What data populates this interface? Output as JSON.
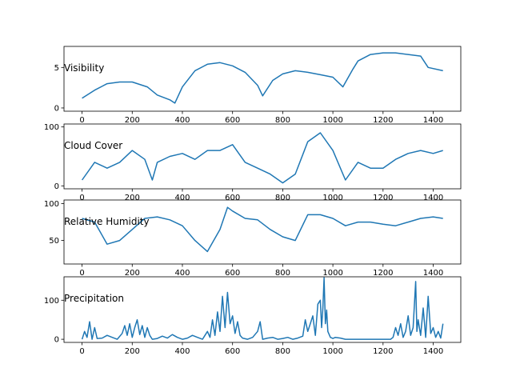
{
  "chart_data": [
    {
      "type": "line",
      "title": "Visibility",
      "xlabel": "",
      "ylabel": "",
      "xlim": [
        -72,
        1510
      ],
      "ylim": [
        -0.4,
        7.6
      ],
      "xticks": [
        0,
        200,
        400,
        600,
        800,
        1000,
        1200,
        1400
      ],
      "yticks": [
        0,
        5
      ],
      "color": "#1f77b4",
      "series": [
        {
          "x": [
            0,
            50,
            100,
            150,
            200,
            260,
            300,
            350,
            370,
            400,
            450,
            500,
            550,
            600,
            650,
            700,
            720,
            760,
            800,
            850,
            900,
            950,
            1000,
            1040,
            1080,
            1100,
            1150,
            1200,
            1250,
            1300,
            1350,
            1380,
            1439
          ],
          "y": [
            1.2,
            2.2,
            3.0,
            3.2,
            3.2,
            2.6,
            1.6,
            1.0,
            0.6,
            2.6,
            4.6,
            5.4,
            5.6,
            5.2,
            4.4,
            2.8,
            1.5,
            3.4,
            4.2,
            4.6,
            4.4,
            4.1,
            3.8,
            2.6,
            4.8,
            5.8,
            6.6,
            6.8,
            6.8,
            6.6,
            6.4,
            5.0,
            4.6
          ]
        }
      ]
    },
    {
      "type": "line",
      "title": "Cloud Cover",
      "xlabel": "",
      "ylabel": "",
      "xlim": [
        -72,
        1510
      ],
      "ylim": [
        -5,
        105
      ],
      "xticks": [
        0,
        200,
        400,
        600,
        800,
        1000,
        1200,
        1400
      ],
      "yticks": [
        0,
        100
      ],
      "color": "#1f77b4",
      "series": [
        {
          "x": [
            0,
            50,
            100,
            150,
            200,
            250,
            280,
            300,
            350,
            400,
            450,
            500,
            550,
            600,
            650,
            700,
            750,
            800,
            850,
            900,
            950,
            1000,
            1050,
            1100,
            1150,
            1200,
            1250,
            1300,
            1350,
            1400,
            1439
          ],
          "y": [
            10,
            40,
            30,
            40,
            60,
            45,
            10,
            40,
            50,
            55,
            45,
            60,
            60,
            70,
            40,
            30,
            20,
            5,
            20,
            75,
            90,
            60,
            10,
            40,
            30,
            30,
            45,
            55,
            60,
            55,
            60
          ]
        }
      ]
    },
    {
      "type": "line",
      "title": "Relative Humidity",
      "xlabel": "",
      "ylabel": "",
      "xlim": [
        -72,
        1510
      ],
      "ylim": [
        18,
        105
      ],
      "xticks": [
        0,
        200,
        400,
        600,
        800,
        1000,
        1200,
        1400
      ],
      "yticks": [
        50,
        100
      ],
      "color": "#1f77b4",
      "series": [
        {
          "x": [
            0,
            50,
            100,
            150,
            200,
            250,
            300,
            350,
            400,
            450,
            500,
            550,
            580,
            600,
            650,
            700,
            750,
            800,
            850,
            900,
            950,
            1000,
            1050,
            1100,
            1150,
            1200,
            1250,
            1300,
            1350,
            1400,
            1439
          ],
          "y": [
            80,
            75,
            45,
            50,
            65,
            80,
            82,
            78,
            70,
            50,
            35,
            65,
            95,
            90,
            80,
            78,
            65,
            55,
            50,
            85,
            85,
            80,
            70,
            75,
            75,
            72,
            70,
            75,
            80,
            82,
            80
          ]
        }
      ]
    },
    {
      "type": "line",
      "title": "Precipitation",
      "xlabel": "",
      "ylabel": "",
      "xlim": [
        -72,
        1510
      ],
      "ylim": [
        -8,
        160
      ],
      "xticks": [
        0,
        200,
        400,
        600,
        800,
        1000,
        1200,
        1400
      ],
      "yticks": [
        0,
        100
      ],
      "color": "#1f77b4",
      "series": [
        {
          "x": [
            0,
            10,
            20,
            30,
            40,
            50,
            60,
            80,
            100,
            120,
            140,
            160,
            170,
            180,
            190,
            200,
            210,
            220,
            230,
            240,
            250,
            260,
            270,
            280,
            300,
            320,
            340,
            360,
            380,
            400,
            420,
            440,
            460,
            480,
            500,
            510,
            520,
            530,
            540,
            550,
            560,
            570,
            580,
            590,
            600,
            610,
            620,
            630,
            640,
            660,
            680,
            700,
            710,
            720,
            740,
            760,
            780,
            800,
            820,
            840,
            860,
            880,
            890,
            900,
            910,
            920,
            930,
            940,
            950,
            955,
            960,
            965,
            970,
            975,
            980,
            990,
            1000,
            1010,
            1030,
            1050,
            1080,
            1110,
            1140,
            1170,
            1200,
            1230,
            1240,
            1250,
            1260,
            1270,
            1280,
            1290,
            1300,
            1310,
            1320,
            1330,
            1335,
            1340,
            1350,
            1360,
            1370,
            1380,
            1390,
            1400,
            1410,
            1420,
            1430,
            1439
          ],
          "y": [
            0,
            20,
            5,
            45,
            0,
            30,
            2,
            3,
            10,
            5,
            0,
            15,
            35,
            10,
            40,
            5,
            30,
            50,
            12,
            35,
            5,
            30,
            10,
            0,
            2,
            8,
            3,
            12,
            5,
            0,
            3,
            10,
            5,
            0,
            20,
            5,
            50,
            10,
            70,
            20,
            110,
            30,
            120,
            40,
            60,
            15,
            45,
            10,
            3,
            0,
            5,
            20,
            45,
            0,
            3,
            5,
            0,
            2,
            5,
            0,
            3,
            8,
            50,
            20,
            40,
            60,
            10,
            90,
            100,
            30,
            80,
            158,
            40,
            75,
            20,
            5,
            2,
            5,
            3,
            0,
            0,
            0,
            0,
            0,
            0,
            0,
            5,
            30,
            10,
            40,
            5,
            20,
            60,
            10,
            30,
            148,
            20,
            50,
            10,
            80,
            5,
            110,
            15,
            30,
            5,
            20,
            3,
            40
          ]
        }
      ]
    }
  ]
}
